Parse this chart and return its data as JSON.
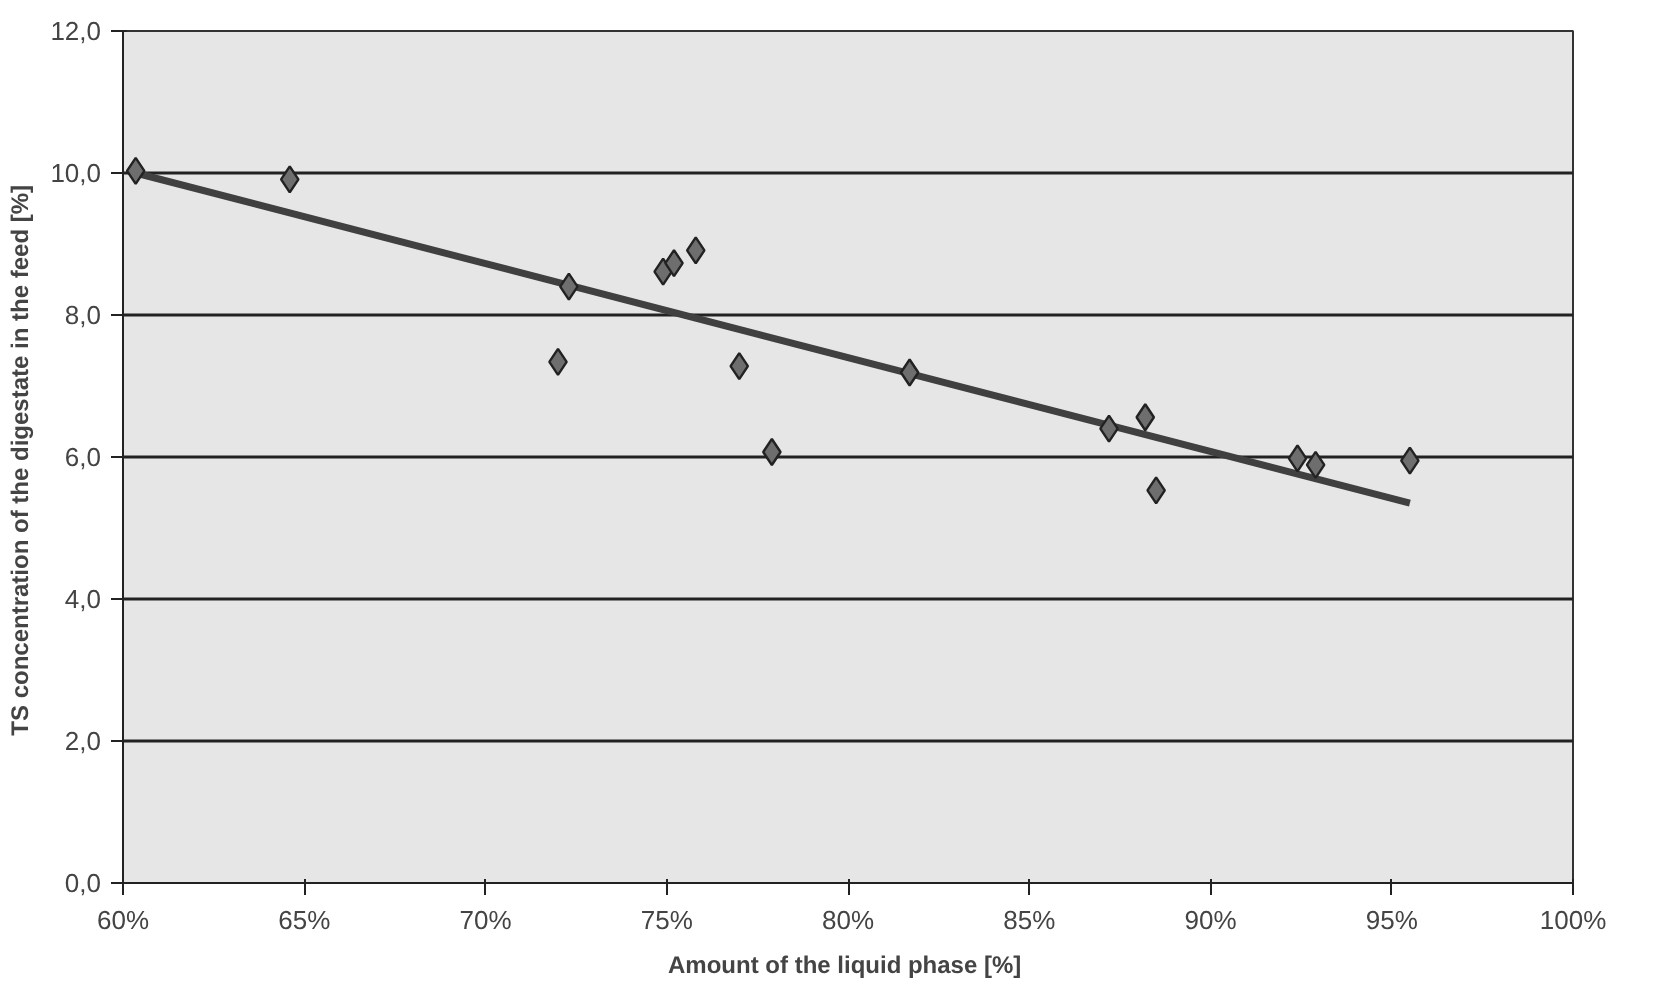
{
  "chart_data": {
    "type": "scatter",
    "xlabel": "Amount of the liquid phase  [%]",
    "ylabel": "TS concentration of the digestate in the feed  [%]",
    "xlim": [
      60,
      100
    ],
    "xticks": [
      {
        "value": 60,
        "label": "60%"
      },
      {
        "value": 65,
        "label": "65%"
      },
      {
        "value": 70,
        "label": "70%"
      },
      {
        "value": 75,
        "label": "75%"
      },
      {
        "value": 80,
        "label": "80%"
      },
      {
        "value": 85,
        "label": "85%"
      },
      {
        "value": 90,
        "label": "90%"
      },
      {
        "value": 95,
        "label": "95%"
      },
      {
        "value": 100,
        "label": "100%"
      }
    ],
    "ylim": [
      0,
      12
    ],
    "yticks": [
      {
        "value": 0,
        "label": "0,0"
      },
      {
        "value": 2,
        "label": "2,0"
      },
      {
        "value": 4,
        "label": "4,0"
      },
      {
        "value": 6,
        "label": "6,0"
      },
      {
        "value": 8,
        "label": "8,0"
      },
      {
        "value": 10,
        "label": "10,0"
      },
      {
        "value": 12,
        "label": "12,0"
      }
    ],
    "grid": "y",
    "series": [
      {
        "marker": "diamond",
        "color": "#6e6e6e",
        "x": [
          60.35,
          64.6,
          72.3,
          72.0,
          74.9,
          75.2,
          75.8,
          77.0,
          77.9,
          81.7,
          87.2,
          88.2,
          88.5,
          92.4,
          92.9,
          95.5
        ],
        "values": [
          10.03,
          9.91,
          8.4,
          7.34,
          8.61,
          8.73,
          8.91,
          7.28,
          6.07,
          7.19,
          6.4,
          6.56,
          5.53,
          5.98,
          5.89,
          5.95
        ]
      },
      {
        "type": "line",
        "color": "#404040",
        "line_style": "solid",
        "x": [
          60.35,
          95.5
        ],
        "values": [
          10.0,
          5.35
        ]
      }
    ]
  }
}
